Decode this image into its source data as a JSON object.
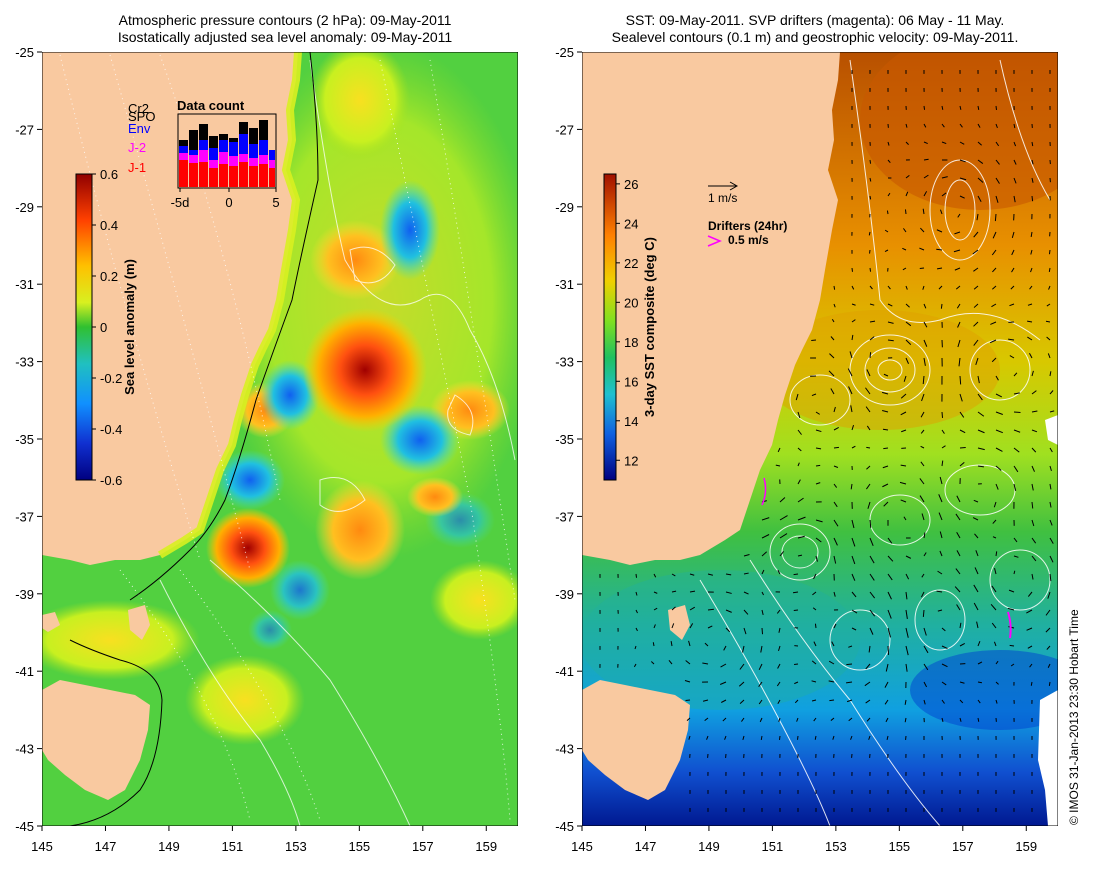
{
  "left_panel": {
    "title_line1": "Atmospheric pressure contours (2 hPa): 09-May-2011",
    "title_line2": "Isostatically adjusted sea level anomaly: 09-May-2011",
    "colorbar_label": "Sea level anomaly (m)",
    "colorbar_ticks": [
      "0.6",
      "0.4",
      "0.2",
      "0",
      "-0.2",
      "-0.4",
      "-0.6"
    ],
    "colorbar_range": [
      -0.6,
      0.6
    ],
    "inset": {
      "title": "Data count",
      "legend": [
        {
          "label": "Cr2",
          "color": "#000000"
        },
        {
          "label": "SPO",
          "color": "#000000"
        },
        {
          "label": "Env",
          "color": "#0000ff"
        },
        {
          "label": "J-2",
          "color": "#ff00ff"
        },
        {
          "label": "J-1",
          "color": "#ff0000"
        }
      ],
      "x_ticks": [
        "-5d",
        "0",
        "5"
      ]
    }
  },
  "right_panel": {
    "title_line1": "SST: 09-May-2011. SVP drifters (magenta): 06 May - 11 May.",
    "title_line2": "Sealevel contours (0.1 m) and geostrophic velocity: 09-May-2011.",
    "colorbar_label": "3-day SST composite (deg C)",
    "colorbar_ticks": [
      "26",
      "24",
      "22",
      "20",
      "18",
      "16",
      "14",
      "12"
    ],
    "colorbar_range": [
      11,
      26.5
    ],
    "velocity_scale_label": "1 m/s",
    "drifters_label": "Drifters (24hr)",
    "drifter_scale_label": "0.5 m/s",
    "drifter_color": "#ff00ff"
  },
  "axes": {
    "x_ticks": [
      "145",
      "147",
      "149",
      "151",
      "153",
      "155",
      "157",
      "159"
    ],
    "y_ticks": [
      "-25",
      "-27",
      "-29",
      "-31",
      "-33",
      "-35",
      "-37",
      "-39",
      "-41",
      "-43",
      "-45"
    ],
    "lon_range": [
      145,
      160
    ],
    "lat_range": [
      -45,
      -25
    ]
  },
  "credit": "© IMOS 31-Jan-2013 23:30 Hobart Time",
  "colors": {
    "land": "#f9c9a0",
    "sla_high": "#b00000",
    "sla_mid": "#30c030",
    "sla_low": "#0000a0",
    "sst_warm": "#c05000",
    "sst_cool": "#000090"
  }
}
